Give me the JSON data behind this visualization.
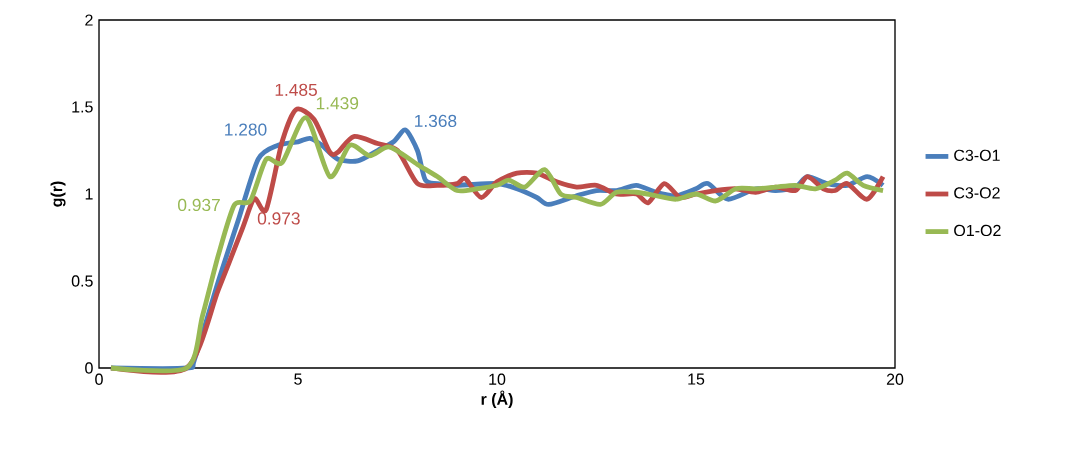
{
  "chart_data": {
    "type": "line",
    "xlabel": "r (Å)",
    "ylabel": "g(r)",
    "xlim": [
      0,
      20
    ],
    "ylim": [
      0,
      2
    ],
    "xticks": [
      0,
      5,
      10,
      15,
      20
    ],
    "yticks": [
      0,
      {
        "value": 0.5,
        "label": "0.5"
      },
      1,
      {
        "value": 1.5,
        "label": "1.5"
      },
      2
    ],
    "legend": "right",
    "grid": false,
    "marker": "none",
    "line_style": "solid",
    "series": [
      {
        "name": "C3-O1",
        "color": "#4a7ebb",
        "x": [
          0.3,
          2.2,
          2.4,
          3,
          3.5,
          4,
          4.5,
          5,
          5.3,
          5.6,
          6,
          6.5,
          7,
          7.4,
          7.7,
          8,
          8.2,
          8.5,
          9,
          10,
          10.5,
          11,
          11.3,
          12,
          12.5,
          13,
          13.5,
          14,
          14.5,
          15,
          15.3,
          15.8,
          16.5,
          17,
          17.5,
          17.8,
          18.3,
          18.8,
          19.3,
          19.7
        ],
        "values": [
          0,
          0,
          0.05,
          0.5,
          0.85,
          1.2,
          1.28,
          1.3,
          1.32,
          1.28,
          1.2,
          1.19,
          1.25,
          1.3,
          1.368,
          1.25,
          1.08,
          1.06,
          1.05,
          1.06,
          1.03,
          0.98,
          0.94,
          0.99,
          1.02,
          1.02,
          1.05,
          1.01,
          0.99,
          1.03,
          1.06,
          0.97,
          1.03,
          1.02,
          1.04,
          1.1,
          1.06,
          1.05,
          1.1,
          1.05
        ],
        "value_labels": [
          null,
          null,
          null,
          null,
          null,
          null,
          "1.280",
          null,
          null,
          null,
          null,
          null,
          null,
          null,
          "1.368",
          null,
          null,
          null,
          null,
          null,
          null,
          null,
          null,
          null,
          null,
          null,
          null,
          null,
          null,
          null,
          null,
          null,
          null,
          null,
          null,
          null,
          null,
          null,
          null,
          null
        ]
      },
      {
        "name": "C3-O2",
        "color": "#be4b48",
        "x": [
          0.3,
          2.2,
          3,
          3.6,
          3.9,
          4.2,
          4.6,
          4.95,
          5.4,
          5.8,
          6,
          6.4,
          7,
          7.5,
          8,
          8.5,
          9,
          9.2,
          9.6,
          10,
          10.5,
          11,
          11.5,
          12,
          12.5,
          13,
          13.5,
          13.8,
          14.2,
          14.6,
          15,
          15.5,
          16,
          16.5,
          17,
          17.5,
          17.8,
          18.2,
          18.5,
          18.8,
          19.3,
          19.7
        ],
        "values": [
          0,
          0,
          0.45,
          0.8,
          0.973,
          0.91,
          1.3,
          1.485,
          1.43,
          1.24,
          1.24,
          1.33,
          1.29,
          1.25,
          1.06,
          1.05,
          1.06,
          1.09,
          0.98,
          1.07,
          1.12,
          1.12,
          1.07,
          1.04,
          1.05,
          1.0,
          1.0,
          0.95,
          1.06,
          0.98,
          1.0,
          1.02,
          1.03,
          1.01,
          1.04,
          1.02,
          1.1,
          1.03,
          1.02,
          1.06,
          0.97,
          1.1
        ],
        "value_labels": [
          null,
          null,
          null,
          null,
          "0.973",
          null,
          null,
          "1.485",
          null,
          null,
          null,
          null,
          null,
          null,
          null,
          null,
          null,
          null,
          null,
          null,
          null,
          null,
          null,
          null,
          null,
          null,
          null,
          null,
          null,
          null,
          null,
          null,
          null,
          null,
          null,
          null,
          null,
          null,
          null,
          null,
          null,
          null
        ]
      },
      {
        "name": "O1-O2",
        "color": "#98b954",
        "x": [
          0.3,
          2.2,
          2.6,
          3,
          3.4,
          3.8,
          4.2,
          4.6,
          5.2,
          5.8,
          6.3,
          6.8,
          7.3,
          8,
          8.5,
          9,
          9.5,
          10,
          10.3,
          10.7,
          11.2,
          11.6,
          12,
          12.6,
          13,
          13.5,
          14,
          14.5,
          15,
          15.5,
          16,
          16.5,
          17,
          17.5,
          18,
          18.5,
          18.8,
          19.2,
          19.7
        ],
        "values": [
          0,
          0,
          0.3,
          0.65,
          0.937,
          0.96,
          1.2,
          1.18,
          1.439,
          1.1,
          1.28,
          1.22,
          1.27,
          1.17,
          1.1,
          1.02,
          1.03,
          1.05,
          1.08,
          1.04,
          1.14,
          1.0,
          0.98,
          0.94,
          1.01,
          1.01,
          0.99,
          0.97,
          1.0,
          0.96,
          1.03,
          1.03,
          1.04,
          1.05,
          1.03,
          1.08,
          1.12,
          1.05,
          1.02
        ],
        "value_labels": [
          null,
          null,
          null,
          null,
          "0.937",
          null,
          null,
          null,
          "1.439",
          null,
          null,
          null,
          null,
          null,
          null,
          null,
          null,
          null,
          null,
          null,
          null,
          null,
          null,
          null,
          null,
          null,
          null,
          null,
          null,
          null,
          null,
          null,
          null,
          null,
          null,
          null,
          null,
          null,
          null
        ]
      }
    ]
  }
}
